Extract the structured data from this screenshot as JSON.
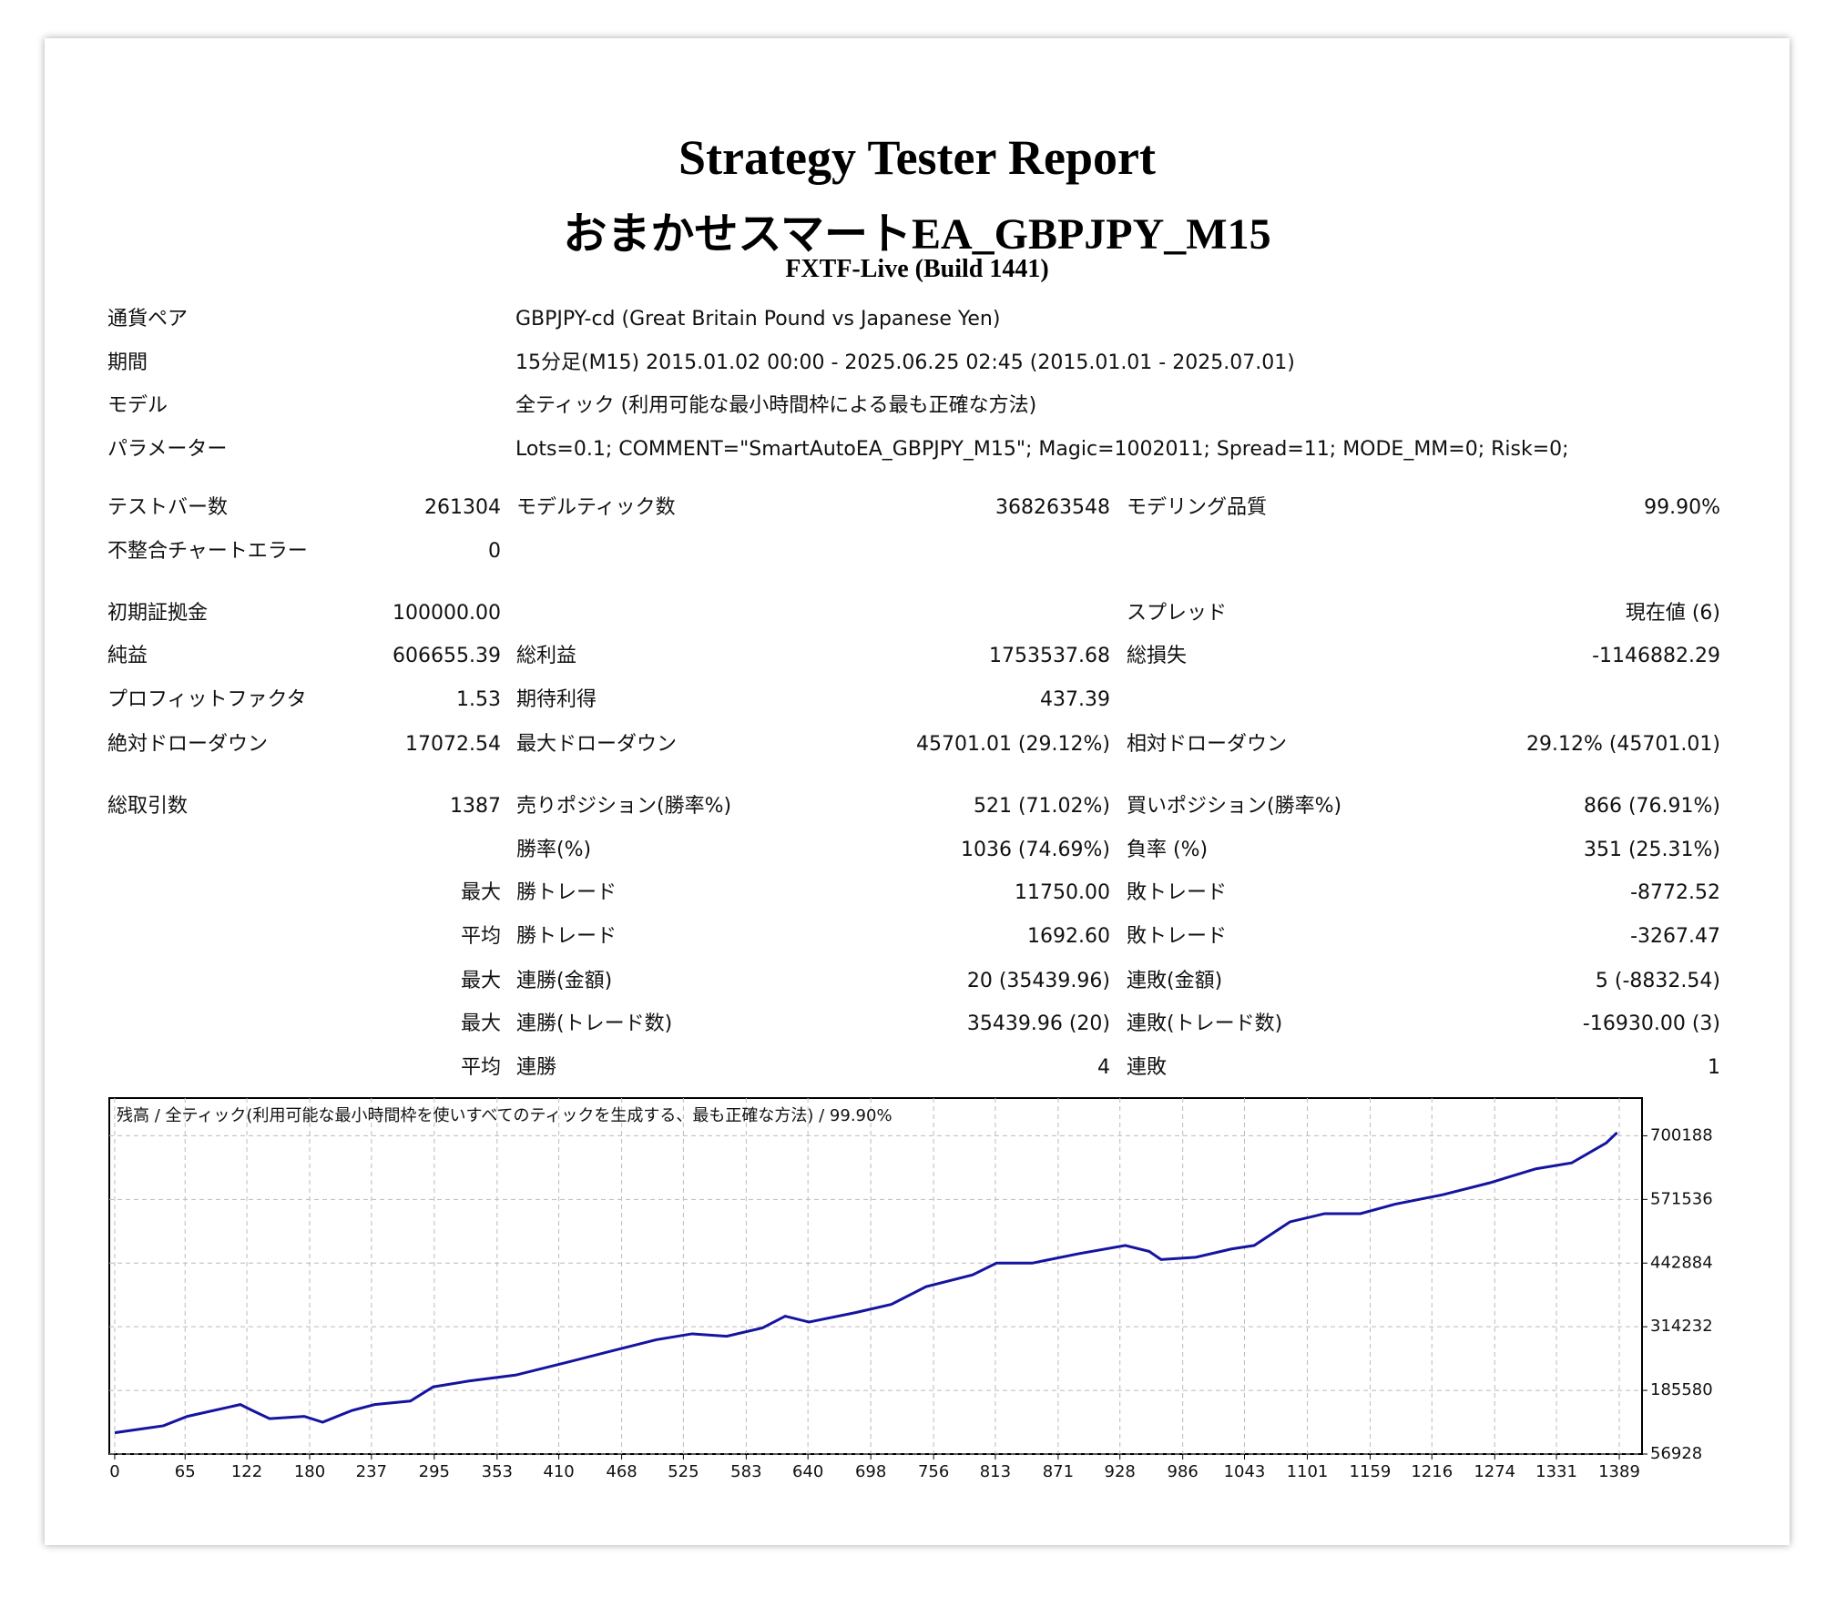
{
  "header": {
    "title": "Strategy Tester Report",
    "subtitle": "おまかせスマートEA_GBPJPY_M15",
    "server": "FXTF-Live (Build 1441)"
  },
  "info": [
    {
      "label": "通貨ペア",
      "value": "GBPJPY-cd (Great Britain Pound vs Japanese Yen)"
    },
    {
      "label": "期間",
      "value": "15分足(M15) 2015.01.02 00:00 - 2025.06.25 02:45 (2015.01.01 - 2025.07.01)"
    },
    {
      "label": "モデル",
      "value": "全ティック (利用可能な最小時間枠による最も正確な方法)"
    },
    {
      "label": "パラメーター",
      "value": "Lots=0.1; COMMENT=\"SmartAutoEA_GBPJPY_M15\"; Magic=1002011; Spread=11; MODE_MM=0; Risk=0;"
    }
  ],
  "stats": [
    {
      "label1": "テストバー数",
      "value1": "261304",
      "label2": "モデルティック数",
      "value2": "368263548",
      "label3": "モデリング品質",
      "value3": "99.90%"
    },
    {
      "label1": "不整合チャートエラー",
      "value1": "0"
    },
    {
      "label1": "初期証拠金",
      "value1": "100000.00",
      "label3": "スプレッド",
      "value3": "現在値 (6)"
    },
    {
      "label1": "純益",
      "value1": "606655.39",
      "label2": "総利益",
      "value2": "1753537.68",
      "label3": "総損失",
      "value3": "-1146882.29"
    },
    {
      "label1": "プロフィットファクタ",
      "value1": "1.53",
      "label2": "期待利得",
      "value2": "437.39"
    },
    {
      "label1": "絶対ドローダウン",
      "value1": "17072.54",
      "label2": "最大ドローダウン",
      "value2": "45701.01 (29.12%)",
      "label3": "相対ドローダウン",
      "value3": "29.12% (45701.01)"
    },
    {
      "label1": "総取引数",
      "value1": "1387",
      "label2": "売りポジション(勝率%)",
      "value2": "521 (71.02%)",
      "label3": "買いポジション(勝率%)",
      "value3": "866 (76.91%)"
    },
    {
      "label2": "勝率(%)",
      "value2": "1036 (74.69%)",
      "label3": "負率 (%)",
      "value3": "351 (25.31%)"
    },
    {
      "value1": "最大",
      "label2": "勝トレード",
      "value2": "11750.00",
      "label3": "敗トレード",
      "value3": "-8772.52"
    },
    {
      "value1": "平均",
      "label2": "勝トレード",
      "value2": "1692.60",
      "label3": "敗トレード",
      "value3": "-3267.47"
    },
    {
      "value1": "最大",
      "label2": "連勝(金額)",
      "value2": "20 (35439.96)",
      "label3": "連敗(金額)",
      "value3": "5 (-8832.54)"
    },
    {
      "value1": "最大",
      "label2": "連勝(トレード数)",
      "value2": "35439.96 (20)",
      "label3": "連敗(トレード数)",
      "value3": "-16930.00 (3)"
    },
    {
      "value1": "平均",
      "label2": "連勝",
      "value2": "4",
      "label3": "連敗",
      "value3": "1"
    }
  ],
  "chart_data": {
    "type": "line",
    "title": "残高 / 全ティック(利用可能な最小時間枠を使いすべてのティックを生成する、最も正確な方法) / 99.90%",
    "x": [
      0,
      45,
      67,
      116,
      127,
      143,
      175,
      192,
      219,
      240,
      273,
      294,
      327,
      370,
      414,
      457,
      500,
      533,
      565,
      598,
      619,
      641,
      684,
      717,
      749,
      792,
      814,
      847,
      890,
      933,
      955,
      966,
      998,
      1031,
      1052,
      1085,
      1117,
      1150,
      1182,
      1226,
      1269,
      1312,
      1345,
      1377,
      1387
    ],
    "series": [
      {
        "name": "残高",
        "color": "#1414a0",
        "values": [
          100000,
          114100,
          133100,
          157000,
          145000,
          128400,
          133100,
          121200,
          145000,
          157000,
          164100,
          192700,
          204600,
          216500,
          240300,
          264200,
          288000,
          299900,
          295100,
          311800,
          335600,
          323700,
          342800,
          359500,
          395200,
          419000,
          442800,
          442800,
          461900,
          478500,
          466600,
          450000,
          454700,
          471400,
          478500,
          526200,
          542800,
          542800,
          561900,
          581000,
          604800,
          633400,
          645300,
          685800,
          706655
        ]
      }
    ],
    "xlim": [
      -5,
      1410
    ],
    "ylim": [
      56928,
      776400
    ],
    "xticks": [
      0,
      65,
      122,
      180,
      237,
      295,
      353,
      410,
      468,
      525,
      583,
      640,
      698,
      756,
      813,
      871,
      928,
      986,
      1043,
      1101,
      1159,
      1216,
      1274,
      1331,
      1389
    ],
    "yticks": [
      56928,
      185580,
      314232,
      442884,
      571536,
      700188
    ],
    "grid": true
  }
}
